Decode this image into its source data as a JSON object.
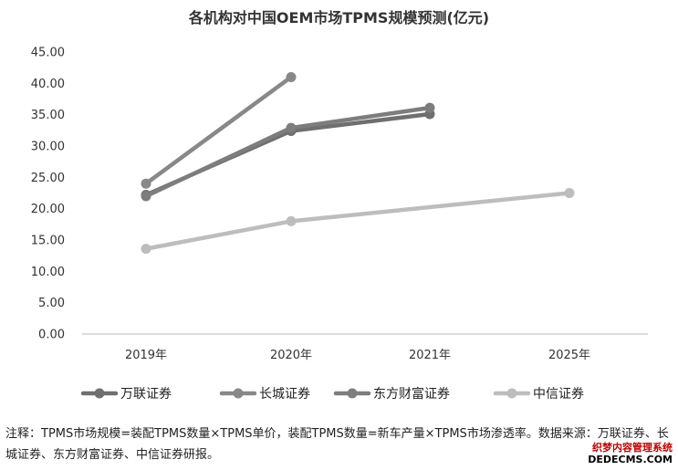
{
  "chart_data": {
    "type": "line",
    "title": "各机构对中国OEM市场TPMS规模预测(亿元)",
    "xlabel": "",
    "ylabel": "",
    "categories": [
      "2019年",
      "2020年",
      "2021年",
      "2025年"
    ],
    "y_ticks": [
      "0.00",
      "5.00",
      "10.00",
      "15.00",
      "20.00",
      "25.00",
      "30.00",
      "35.00",
      "40.00",
      "45.00"
    ],
    "ylim": [
      0,
      45
    ],
    "grid": false,
    "legend_position": "bottom",
    "series": [
      {
        "name": "万联证券",
        "color": "#6f6f6f",
        "values": [
          22.2,
          32.4,
          35.1,
          null
        ]
      },
      {
        "name": "长城证券",
        "color": "#888888",
        "values": [
          24.0,
          41.0,
          null,
          null
        ]
      },
      {
        "name": "东方财富证券",
        "color": "#7d7d7d",
        "values": [
          22.0,
          32.9,
          36.1,
          null
        ]
      },
      {
        "name": "中信证券",
        "color": "#bdbdbd",
        "values": [
          13.6,
          18.0,
          null,
          22.5
        ]
      }
    ]
  },
  "note": "注释：TPMS市场规模=装配TPMS数量×TPMS单价，装配TPMS数量=新车产量×TPMS市场渗透率。数据来源：万联证券、长城证券、东方财富证券、中信证券研报。",
  "watermark": {
    "line1": "织梦内容管理系统",
    "line2": "DEDECMS.COM"
  }
}
